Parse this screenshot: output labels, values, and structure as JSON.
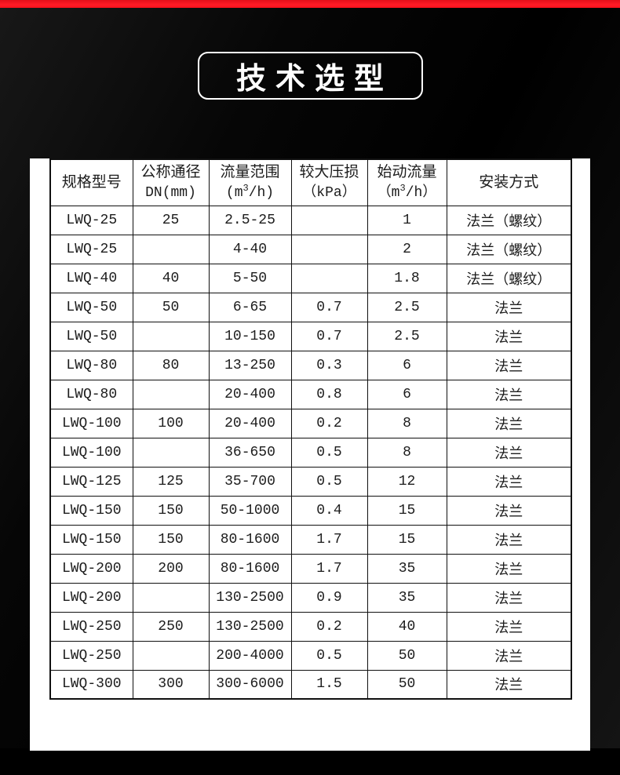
{
  "page": {
    "title_badge": "技术选型"
  },
  "colors": {
    "accent_red": "#f6101c",
    "header_bg": "#000000",
    "panel_bg": "#ffffff",
    "table_border": "#101010",
    "title_text": "#ffffff"
  },
  "table": {
    "columns": [
      {
        "line1": "规格型号",
        "line2": ""
      },
      {
        "line1": "公称通径",
        "line2": "DN(mm)"
      },
      {
        "line1": "流量范围",
        "unit_pre": "(m",
        "unit_sup": "3",
        "unit_post": "/h)"
      },
      {
        "line1": "较大压损",
        "line2": "（kPa）"
      },
      {
        "line1": "始动流量",
        "unit_pre": "（m",
        "unit_sup": "3",
        "unit_post": "/h）"
      },
      {
        "line1": "安装方式",
        "line2": ""
      }
    ],
    "rows": [
      [
        "LWQ-25",
        "25",
        "2.5-25",
        "",
        "1",
        "法兰（螺纹）"
      ],
      [
        "LWQ-25",
        "",
        "4-40",
        "",
        "2",
        "法兰（螺纹）"
      ],
      [
        "LWQ-40",
        "40",
        "5-50",
        "",
        "1.8",
        "法兰（螺纹）"
      ],
      [
        "LWQ-50",
        "50",
        "6-65",
        "0.7",
        "2.5",
        "法兰"
      ],
      [
        "LWQ-50",
        "",
        "10-150",
        "0.7",
        "2.5",
        "法兰"
      ],
      [
        "LWQ-80",
        "80",
        "13-250",
        "0.3",
        "6",
        "法兰"
      ],
      [
        "LWQ-80",
        "",
        "20-400",
        "0.8",
        "6",
        "法兰"
      ],
      [
        "LWQ-100",
        "100",
        "20-400",
        "0.2",
        "8",
        "法兰"
      ],
      [
        "LWQ-100",
        "",
        "36-650",
        "0.5",
        "8",
        "法兰"
      ],
      [
        "LWQ-125",
        "125",
        "35-700",
        "0.5",
        "12",
        "法兰"
      ],
      [
        "LWQ-150",
        "150",
        "50-1000",
        "0.4",
        "15",
        "法兰"
      ],
      [
        "LWQ-150",
        "150",
        "80-1600",
        "1.7",
        "15",
        "法兰"
      ],
      [
        "LWQ-200",
        "200",
        "80-1600",
        "1.7",
        "35",
        "法兰"
      ],
      [
        "LWQ-200",
        "",
        "130-2500",
        "0.9",
        "35",
        "法兰"
      ],
      [
        "LWQ-250",
        "250",
        "130-2500",
        "0.2",
        "40",
        "法兰"
      ],
      [
        "LWQ-250",
        "",
        "200-4000",
        "0.5",
        "50",
        "法兰"
      ],
      [
        "LWQ-300",
        "300",
        "300-6000",
        "1.5",
        "50",
        "法兰"
      ]
    ]
  }
}
